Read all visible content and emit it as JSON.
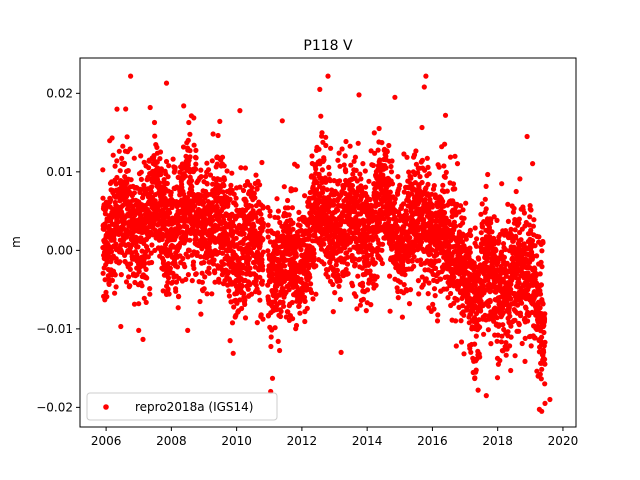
{
  "chart_data": {
    "type": "scatter",
    "title": "P118 V",
    "xlabel": "",
    "ylabel": "m",
    "xlim": [
      2005.2,
      2020.4
    ],
    "ylim": [
      -0.0225,
      0.0245
    ],
    "xticks": [
      2006,
      2008,
      2010,
      2012,
      2014,
      2016,
      2018,
      2020
    ],
    "xtick_labels": [
      "2006",
      "2008",
      "2010",
      "2012",
      "2014",
      "2016",
      "2018",
      "2020"
    ],
    "yticks": [
      -0.02,
      -0.01,
      0.0,
      0.01,
      0.02
    ],
    "ytick_labels": [
      "−0.02",
      "−0.01",
      "0.00",
      "0.01",
      "0.02"
    ],
    "grid": false,
    "legend_position": "lower-left",
    "series": [
      {
        "name": "repro2018a (IGS14)",
        "color": "#ff0000",
        "marker": "circle",
        "trend": [
          [
            2005.9,
            0.0035
          ],
          [
            2006.5,
            0.003
          ],
          [
            2007.0,
            0.004
          ],
          [
            2007.5,
            0.0045
          ],
          [
            2008.0,
            0.003
          ],
          [
            2008.5,
            0.0045
          ],
          [
            2009.0,
            0.0055
          ],
          [
            2009.5,
            0.002
          ],
          [
            2010.0,
            0.0015
          ],
          [
            2010.5,
            0.0005
          ],
          [
            2011.0,
            -0.0005
          ],
          [
            2011.3,
            -0.0035
          ],
          [
            2011.7,
            -0.002
          ],
          [
            2012.0,
            0.0
          ],
          [
            2012.5,
            0.0035
          ],
          [
            2013.0,
            0.004
          ],
          [
            2013.5,
            0.002
          ],
          [
            2014.0,
            0.004
          ],
          [
            2014.5,
            0.004
          ],
          [
            2015.0,
            0.003
          ],
          [
            2015.5,
            0.002
          ],
          [
            2016.0,
            0.0045
          ],
          [
            2016.5,
            -0.0005
          ],
          [
            2017.0,
            0.0
          ],
          [
            2017.3,
            -0.008
          ],
          [
            2017.7,
            -0.003
          ],
          [
            2018.0,
            -0.002
          ],
          [
            2018.3,
            -0.0055
          ],
          [
            2018.6,
            -0.004
          ],
          [
            2019.0,
            -0.0005
          ],
          [
            2019.3,
            -0.009
          ],
          [
            2019.45,
            -0.014
          ]
        ],
        "outliers": [
          {
            "x": 2006.75,
            "y": 0.0222
          },
          {
            "x": 2007.85,
            "y": 0.0213
          },
          {
            "x": 2012.8,
            "y": 0.0222
          },
          {
            "x": 2015.8,
            "y": 0.0222
          },
          {
            "x": 2015.75,
            "y": 0.0208
          },
          {
            "x": 2012.55,
            "y": 0.0205
          },
          {
            "x": 2013.75,
            "y": 0.0198
          },
          {
            "x": 2014.85,
            "y": 0.0195
          },
          {
            "x": 2010.1,
            "y": 0.0178
          },
          {
            "x": 2006.6,
            "y": 0.018
          },
          {
            "x": 2007.35,
            "y": 0.0182
          },
          {
            "x": 2009.8,
            "y": -0.0115
          },
          {
            "x": 2011.1,
            "y": -0.0163
          },
          {
            "x": 2013.2,
            "y": -0.013
          },
          {
            "x": 2006.45,
            "y": -0.0097
          },
          {
            "x": 2007.0,
            "y": -0.0102
          },
          {
            "x": 2008.5,
            "y": -0.0102
          },
          {
            "x": 2017.65,
            "y": -0.0185
          },
          {
            "x": 2017.4,
            "y": -0.0178
          },
          {
            "x": 2018.4,
            "y": -0.0153
          },
          {
            "x": 2019.35,
            "y": -0.0205
          },
          {
            "x": 2019.45,
            "y": -0.0195
          },
          {
            "x": 2019.6,
            "y": -0.019
          },
          {
            "x": 2016.4,
            "y": 0.0172
          },
          {
            "x": 2018.9,
            "y": 0.0145
          },
          {
            "x": 2011.4,
            "y": 0.0165
          }
        ]
      }
    ]
  }
}
